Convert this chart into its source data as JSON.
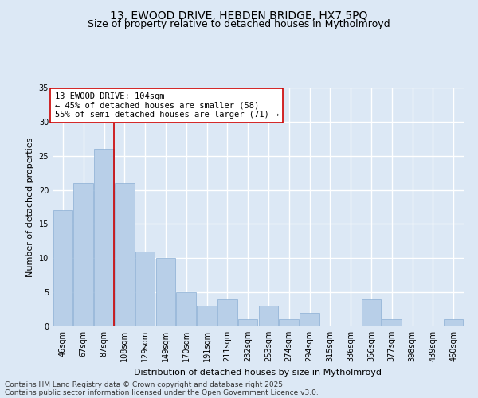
{
  "title1": "13, EWOOD DRIVE, HEBDEN BRIDGE, HX7 5PQ",
  "title2": "Size of property relative to detached houses in Mytholmroyd",
  "xlabel": "Distribution of detached houses by size in Mytholmroyd",
  "ylabel": "Number of detached properties",
  "categories": [
    "46sqm",
    "67sqm",
    "87sqm",
    "108sqm",
    "129sqm",
    "149sqm",
    "170sqm",
    "191sqm",
    "211sqm",
    "232sqm",
    "253sqm",
    "274sqm",
    "294sqm",
    "315sqm",
    "336sqm",
    "356sqm",
    "377sqm",
    "398sqm",
    "439sqm",
    "460sqm"
  ],
  "values": [
    17,
    21,
    26,
    21,
    11,
    10,
    5,
    3,
    4,
    1,
    3,
    1,
    2,
    0,
    0,
    4,
    1,
    0,
    0,
    1
  ],
  "bar_color": "#b8cfe8",
  "bar_edge_color": "#8aaed4",
  "background_color": "#dce8f5",
  "grid_color": "#ffffff",
  "ref_line_color": "#cc0000",
  "annotation_text": "13 EWOOD DRIVE: 104sqm\n← 45% of detached houses are smaller (58)\n55% of semi-detached houses are larger (71) →",
  "annotation_box_color": "#ffffff",
  "annotation_box_edge_color": "#cc0000",
  "ylim": [
    0,
    35
  ],
  "yticks": [
    0,
    5,
    10,
    15,
    20,
    25,
    30,
    35
  ],
  "footer1": "Contains HM Land Registry data © Crown copyright and database right 2025.",
  "footer2": "Contains public sector information licensed under the Open Government Licence v3.0.",
  "title1_fontsize": 10,
  "title2_fontsize": 9,
  "axis_label_fontsize": 8,
  "tick_fontsize": 7,
  "annotation_fontsize": 7.5,
  "footer_fontsize": 6.5
}
